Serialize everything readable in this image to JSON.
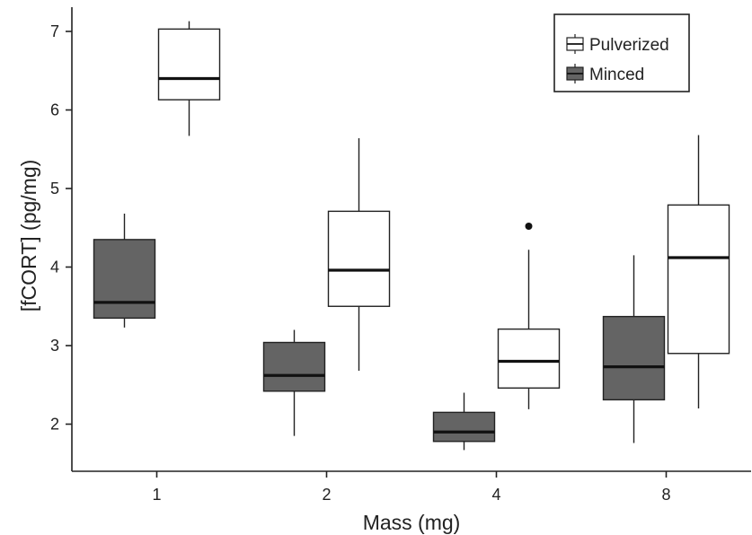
{
  "chart_data": {
    "type": "boxplot",
    "xlabel": "Mass (mg)",
    "ylabel": "[fCORT] (pg/mg)",
    "categories": [
      "1",
      "2",
      "4",
      "8"
    ],
    "ylim": [
      1.4,
      7.4
    ],
    "yticks": [
      2,
      3,
      4,
      5,
      6,
      7
    ],
    "grid": false,
    "legend_position": "top-right",
    "series": [
      {
        "name": "Minced",
        "color": "#646464",
        "boxes": [
          {
            "category": "1",
            "whisker_low": 3.23,
            "q1": 3.35,
            "median": 3.55,
            "q3": 4.35,
            "whisker_high": 4.68,
            "outliers": []
          },
          {
            "category": "2",
            "whisker_low": 1.85,
            "q1": 2.42,
            "median": 2.62,
            "q3": 3.04,
            "whisker_high": 3.2,
            "outliers": []
          },
          {
            "category": "4",
            "whisker_low": 1.67,
            "q1": 1.78,
            "median": 1.9,
            "q3": 2.15,
            "whisker_high": 2.4,
            "outliers": []
          },
          {
            "category": "8",
            "whisker_low": 1.76,
            "q1": 2.31,
            "median": 2.73,
            "q3": 3.37,
            "whisker_high": 4.15,
            "outliers": []
          }
        ]
      },
      {
        "name": "Pulverized",
        "color": "#ffffff",
        "boxes": [
          {
            "category": "1",
            "whisker_low": 5.67,
            "q1": 6.13,
            "median": 6.4,
            "q3": 7.03,
            "whisker_high": 7.13,
            "outliers": []
          },
          {
            "category": "2",
            "whisker_low": 2.68,
            "q1": 3.5,
            "median": 3.96,
            "q3": 4.71,
            "whisker_high": 5.64,
            "outliers": []
          },
          {
            "category": "4",
            "whisker_low": 2.19,
            "q1": 2.46,
            "median": 2.8,
            "q3": 3.21,
            "whisker_high": 4.22,
            "outliers": [
              4.52
            ]
          },
          {
            "category": "8",
            "whisker_low": 2.2,
            "q1": 2.9,
            "median": 4.12,
            "q3": 4.79,
            "whisker_high": 5.68,
            "outliers": []
          }
        ]
      }
    ],
    "legend": [
      {
        "name": "Pulverized",
        "color": "#ffffff"
      },
      {
        "name": "Minced",
        "color": "#646464"
      }
    ]
  }
}
